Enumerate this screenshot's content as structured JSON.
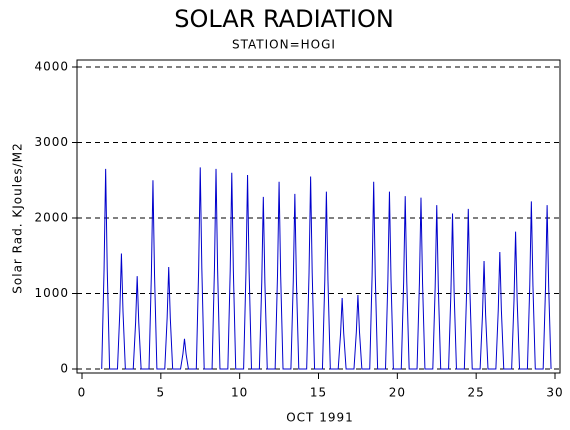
{
  "chart_data": {
    "type": "line",
    "title": "SOLAR RADIATION",
    "subtitle": "STATION=HOGI",
    "x_label": "OCT 1991",
    "y_label": "Solar Rad. KJoules/M2",
    "xlim": [
      0,
      30
    ],
    "xticks": [
      0,
      5,
      10,
      15,
      20,
      25,
      30
    ],
    "ylim": [
      0,
      4000
    ],
    "yticks": [
      0,
      1000,
      2000,
      3000,
      4000
    ],
    "grid": true,
    "series": [
      {
        "color": "#0000cc",
        "x": [
          1.25,
          1.4,
          1.5,
          1.6,
          1.75,
          2.25,
          2.4,
          2.5,
          2.6,
          2.75,
          3.25,
          3.4,
          3.5,
          3.6,
          3.75,
          4.25,
          4.4,
          4.5,
          4.6,
          4.75,
          5.25,
          5.4,
          5.5,
          5.6,
          5.75,
          6.25,
          6.4,
          6.5,
          6.6,
          6.75,
          7.25,
          7.4,
          7.5,
          7.6,
          7.75,
          8.25,
          8.4,
          8.5,
          8.6,
          8.75,
          9.25,
          9.4,
          9.5,
          9.6,
          9.75,
          10.25,
          10.4,
          10.5,
          10.6,
          10.75,
          11.25,
          11.4,
          11.5,
          11.6,
          11.75,
          12.25,
          12.4,
          12.5,
          12.6,
          12.75,
          13.25,
          13.4,
          13.5,
          13.6,
          13.75,
          14.25,
          14.4,
          14.5,
          14.6,
          14.75,
          15.25,
          15.4,
          15.5,
          15.6,
          15.75,
          16.25,
          16.4,
          16.5,
          16.6,
          16.75,
          17.25,
          17.4,
          17.5,
          17.6,
          17.75,
          18.25,
          18.4,
          18.5,
          18.6,
          18.75,
          19.25,
          19.4,
          19.5,
          19.6,
          19.75,
          20.25,
          20.4,
          20.5,
          20.6,
          20.75,
          21.25,
          21.4,
          21.5,
          21.6,
          21.75,
          22.25,
          22.4,
          22.5,
          22.6,
          22.75,
          23.25,
          23.4,
          23.5,
          23.6,
          23.75,
          24.25,
          24.4,
          24.5,
          24.6,
          24.75,
          25.25,
          25.4,
          25.5,
          25.6,
          25.75,
          26.25,
          26.4,
          26.5,
          26.6,
          26.75,
          27.25,
          27.4,
          27.5,
          27.6,
          27.75,
          28.25,
          28.4,
          28.5,
          28.6,
          28.75,
          29.25,
          29.4,
          29.5,
          29.6,
          29.75
        ],
        "values": [
          0,
          1325,
          2650,
          1325,
          0,
          0,
          765,
          1530,
          765,
          0,
          0,
          615,
          1230,
          615,
          0,
          0,
          1250,
          2500,
          1250,
          0,
          0,
          675,
          1350,
          675,
          0,
          0,
          200,
          400,
          200,
          0,
          0,
          1335,
          2670,
          1335,
          0,
          0,
          1325,
          2650,
          1325,
          0,
          0,
          1300,
          2600,
          1300,
          0,
          0,
          1285,
          2570,
          1285,
          0,
          0,
          1140,
          2280,
          1140,
          0,
          0,
          1240,
          2480,
          1240,
          0,
          0,
          1160,
          2320,
          1160,
          0,
          0,
          1275,
          2550,
          1275,
          0,
          0,
          1175,
          2350,
          1175,
          0,
          0,
          470,
          940,
          470,
          0,
          0,
          490,
          980,
          490,
          0,
          0,
          1240,
          2480,
          1240,
          0,
          0,
          1175,
          2350,
          1175,
          0,
          0,
          1145,
          2290,
          1145,
          0,
          0,
          1135,
          2270,
          1135,
          0,
          0,
          1085,
          2170,
          1085,
          0,
          0,
          1030,
          2060,
          1030,
          0,
          0,
          1060,
          2120,
          1060,
          0,
          0,
          715,
          1430,
          715,
          0,
          0,
          775,
          1550,
          775,
          0,
          0,
          910,
          1820,
          910,
          0,
          0,
          1110,
          2220,
          1110,
          0,
          0,
          1085,
          2170,
          1085,
          0
        ]
      }
    ]
  }
}
